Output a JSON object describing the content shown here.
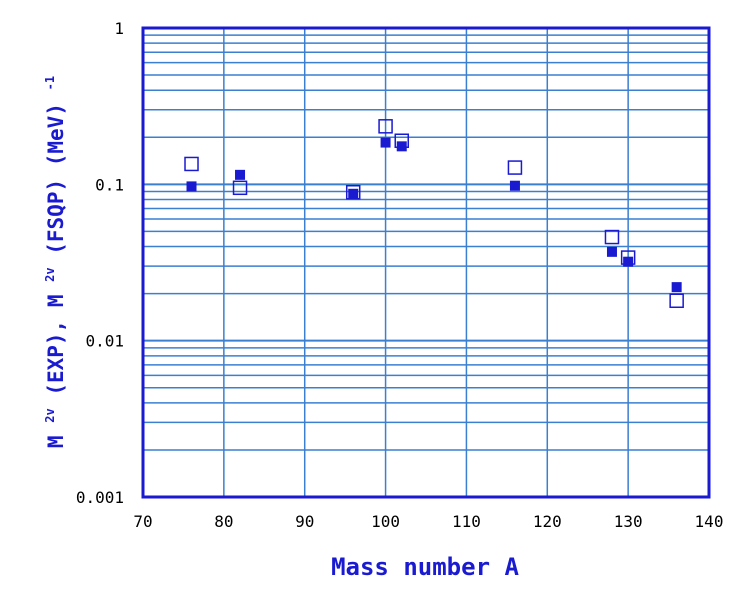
{
  "chart_data": {
    "type": "scatter",
    "xlabel": "Mass number A",
    "ylabel": {
      "part1": "M",
      "sup1": "2v",
      "part2": "(EXP),  M",
      "sup2": "2v",
      "part3": "(FSQP)  (MeV)",
      "sup3": "-1"
    },
    "xlim": [
      70,
      140
    ],
    "ylim": [
      0.001,
      1
    ],
    "yscale": "log",
    "grid": true,
    "xticks": [
      "70",
      "80",
      "90",
      "100",
      "110",
      "120",
      "130",
      "140"
    ],
    "yticks": [
      "0.001",
      "0.01",
      "0.1",
      "1"
    ],
    "series": [
      {
        "marker": "filled-square",
        "x": [
          76,
          82,
          96,
          100,
          102,
          116,
          128,
          130,
          136
        ],
        "y": [
          0.097,
          0.115,
          0.087,
          0.185,
          0.175,
          0.098,
          0.037,
          0.032,
          0.022
        ]
      },
      {
        "marker": "open-square",
        "x": [
          76,
          82,
          96,
          100,
          102,
          116,
          128,
          130,
          136
        ],
        "y": [
          0.135,
          0.095,
          0.089,
          0.235,
          0.19,
          0.128,
          0.046,
          0.034,
          0.018
        ]
      }
    ],
    "colors": {
      "grid": "#3a7fd0",
      "axis": "#1a1ad0",
      "filled": "#1a1ad0",
      "open": "#1a1ad0",
      "label": "#1a1ad0"
    }
  }
}
